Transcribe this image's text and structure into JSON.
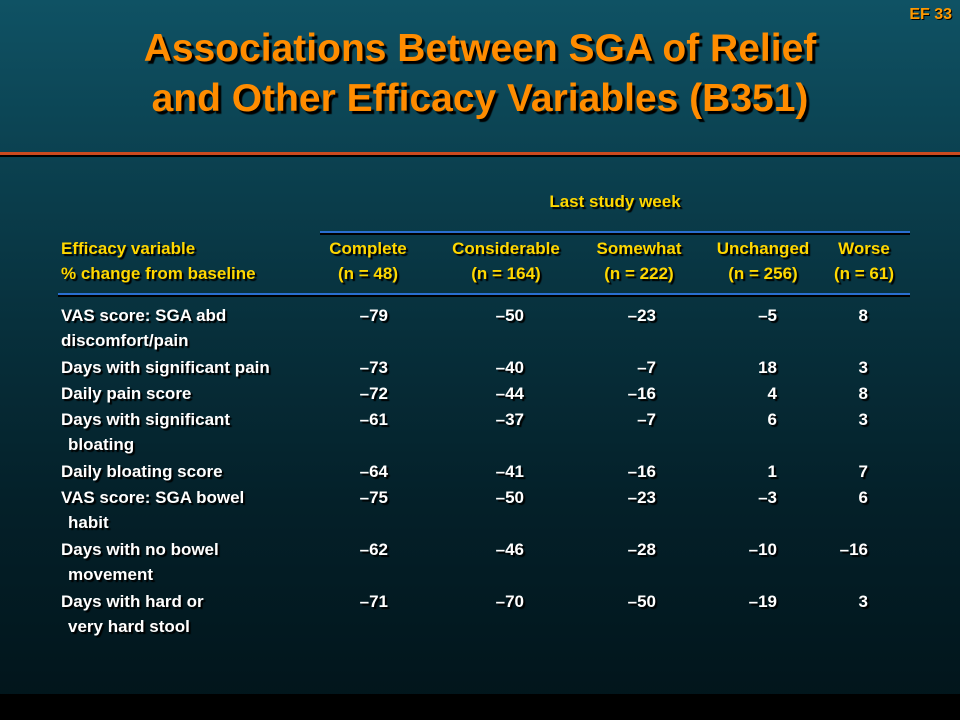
{
  "slide": {
    "number": "EF 33",
    "title_line1": "Associations Between SGA of Relief",
    "title_line2": "and Other Efficacy Variables (B351)"
  },
  "table": {
    "group_header": "Last study week",
    "variable_header_line1": "Efficacy variable",
    "variable_header_line2": "% change from baseline",
    "columns": [
      {
        "label": "Complete",
        "n": "(n = 48)"
      },
      {
        "label": "Considerable",
        "n": "(n = 164)"
      },
      {
        "label": "Somewhat",
        "n": "(n = 222)"
      },
      {
        "label": "Unchanged",
        "n": "(n = 256)"
      },
      {
        "label": "Worse",
        "n": "(n = 61)"
      }
    ],
    "rows": [
      {
        "line1": "VAS score: SGA abd",
        "line2": "discomfort/pain",
        "values": [
          "–79",
          "–50",
          "–23",
          "–5",
          "8"
        ]
      },
      {
        "line1": "Days with significant pain",
        "line2": "",
        "values": [
          "–73",
          "–40",
          "–7",
          "18",
          "3"
        ]
      },
      {
        "line1": "Daily pain score",
        "line2": "",
        "values": [
          "–72",
          "–44",
          "–16",
          "4",
          "8"
        ]
      },
      {
        "line1": "Days with significant",
        "line2": "bloating",
        "values": [
          "–61",
          "–37",
          "–7",
          "6",
          "3"
        ]
      },
      {
        "line1": "Daily bloating score",
        "line2": "",
        "values": [
          "–64",
          "–41",
          "–16",
          "1",
          "7"
        ]
      },
      {
        "line1": "VAS score: SGA bowel",
        "line2": "habit",
        "values": [
          "–75",
          "–50",
          "–23",
          "–3",
          "6"
        ]
      },
      {
        "line1": "Days with no bowel",
        "line2": "movement",
        "values": [
          "–62",
          "–46",
          "–28",
          "–10",
          "–16"
        ]
      },
      {
        "line1": "Days with hard or",
        "line2": "very hard stool",
        "values": [
          "–71",
          "–70",
          "–50",
          "–19",
          "3"
        ]
      }
    ]
  }
}
